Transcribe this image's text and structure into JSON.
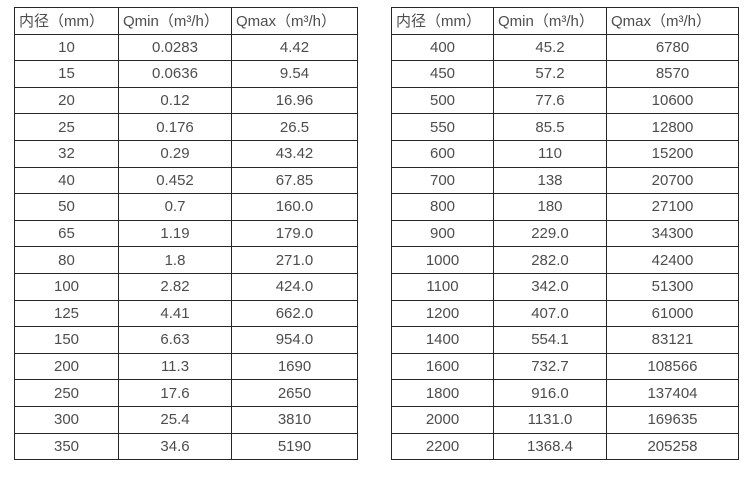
{
  "colors": {
    "border": "#262626",
    "text": "#4d4d4d",
    "background": "#ffffff"
  },
  "table_left": {
    "headers": [
      "内径（mm）",
      "Qmin（m³/h）",
      "Qmax（m³/h）"
    ],
    "rows": [
      [
        "10",
        "0.0283",
        "4.42"
      ],
      [
        "15",
        "0.0636",
        "9.54"
      ],
      [
        "20",
        "0.12",
        "16.96"
      ],
      [
        "25",
        "0.176",
        "26.5"
      ],
      [
        "32",
        "0.29",
        "43.42"
      ],
      [
        "40",
        "0.452",
        "67.85"
      ],
      [
        "50",
        "0.7",
        "160.0"
      ],
      [
        "65",
        "1.19",
        "179.0"
      ],
      [
        "80",
        "1.8",
        "271.0"
      ],
      [
        "100",
        "2.82",
        "424.0"
      ],
      [
        "125",
        "4.41",
        "662.0"
      ],
      [
        "150",
        "6.63",
        "954.0"
      ],
      [
        "200",
        "11.3",
        "1690"
      ],
      [
        "250",
        "17.6",
        "2650"
      ],
      [
        "300",
        "25.4",
        "3810"
      ],
      [
        "350",
        "34.6",
        "5190"
      ]
    ]
  },
  "table_right": {
    "headers": [
      "内径（mm）",
      "Qmin（m³/h）",
      "Qmax（m³/h）"
    ],
    "rows": [
      [
        "400",
        "45.2",
        "6780"
      ],
      [
        "450",
        "57.2",
        "8570"
      ],
      [
        "500",
        "77.6",
        "10600"
      ],
      [
        "550",
        "85.5",
        "12800"
      ],
      [
        "600",
        "110",
        "15200"
      ],
      [
        "700",
        "138",
        "20700"
      ],
      [
        "800",
        "180",
        "27100"
      ],
      [
        "900",
        "229.0",
        "34300"
      ],
      [
        "1000",
        "282.0",
        "42400"
      ],
      [
        "1100",
        "342.0",
        "51300"
      ],
      [
        "1200",
        "407.0",
        "61000"
      ],
      [
        "1400",
        "554.1",
        "83121"
      ],
      [
        "1600",
        "732.7",
        "108566"
      ],
      [
        "1800",
        "916.0",
        "137404"
      ],
      [
        "2000",
        "1131.0",
        "169635"
      ],
      [
        "2200",
        "1368.4",
        "205258"
      ]
    ]
  }
}
